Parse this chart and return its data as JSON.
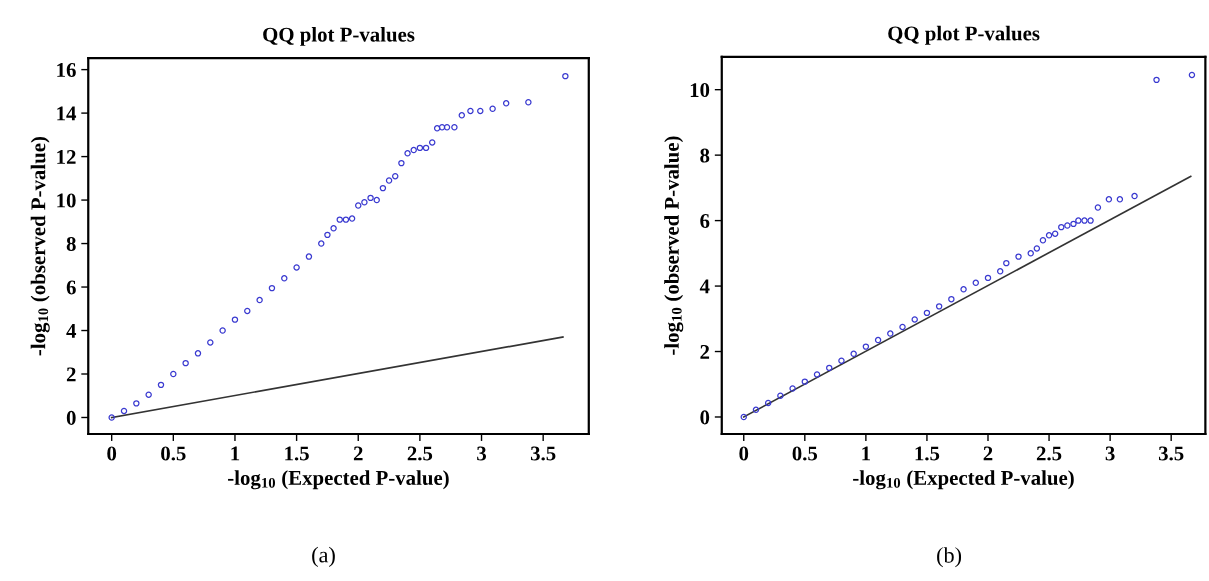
{
  "chart_data": [
    {
      "type": "scatter",
      "title": "QQ plot P-values",
      "xlabel": "-log$_{10}$ (Expected P-value)",
      "ylabel": "-log$_{10}$ (observed P-value)",
      "annotations": [
        "(a)"
      ],
      "marker": "circle",
      "grid": false,
      "xlim": [
        -0.19,
        3.87
      ],
      "ylim": [
        -0.76,
        16.53
      ],
      "xticks": [
        0,
        0.5,
        1,
        1.5,
        2,
        2.5,
        3,
        3.5
      ],
      "yticks": [
        0,
        2,
        4,
        6,
        8,
        10,
        12,
        14,
        16
      ],
      "series": [
        {
          "color": "#3a3ad0",
          "x": [
            0,
            0.1,
            0.2,
            0.3,
            0.4,
            0.5,
            0.6,
            0.7,
            0.8,
            0.9,
            1.0,
            1.1,
            1.2,
            1.3,
            1.4,
            1.5,
            1.6,
            1.7,
            1.75,
            1.8,
            1.85,
            1.9,
            1.95,
            2.0,
            2.05,
            2.1,
            2.15,
            2.2,
            2.25,
            2.3,
            2.35,
            2.4,
            2.45,
            2.5,
            2.55,
            2.6,
            2.64,
            2.68,
            2.72,
            2.78,
            2.84,
            2.91,
            2.99,
            3.09,
            3.2,
            3.38,
            3.68
          ],
          "values": [
            0,
            0.3,
            0.65,
            1.05,
            1.5,
            2.0,
            2.5,
            2.95,
            3.45,
            4.0,
            4.5,
            4.9,
            5.4,
            5.95,
            6.4,
            6.9,
            7.4,
            8.0,
            8.4,
            8.7,
            9.1,
            9.1,
            9.15,
            9.75,
            9.9,
            10.1,
            10.0,
            10.55,
            10.9,
            11.1,
            11.7,
            12.15,
            12.3,
            12.4,
            12.4,
            12.65,
            13.3,
            13.35,
            13.35,
            13.35,
            13.9,
            14.1,
            14.1,
            14.2,
            14.45,
            14.5,
            15.7
          ]
        },
        {
          "type": "line",
          "marker": "none",
          "color": "#333333",
          "x": [
            0,
            3.66
          ],
          "values": [
            0,
            3.7
          ]
        }
      ]
    },
    {
      "type": "scatter",
      "title": "QQ plot P-values",
      "xlabel": "-log$_{10}$ (Expected P-value)",
      "ylabel": "-log$_{10}$ (observed P-value)",
      "annotations": [
        "(b)"
      ],
      "marker": "circle",
      "grid": false,
      "xlim": [
        -0.18,
        3.78
      ],
      "ylim": [
        -0.52,
        11.0
      ],
      "xticks": [
        0,
        0.5,
        1,
        1.5,
        2,
        2.5,
        3,
        3.5
      ],
      "yticks": [
        0,
        2,
        4,
        6,
        8,
        10
      ],
      "series": [
        {
          "color": "#3a3ad0",
          "x": [
            0,
            0.1,
            0.2,
            0.3,
            0.4,
            0.5,
            0.6,
            0.7,
            0.8,
            0.9,
            1.0,
            1.1,
            1.2,
            1.3,
            1.4,
            1.5,
            1.6,
            1.7,
            1.8,
            1.9,
            2.0,
            2.1,
            2.15,
            2.25,
            2.35,
            2.4,
            2.45,
            2.5,
            2.55,
            2.6,
            2.65,
            2.7,
            2.74,
            2.79,
            2.84,
            2.9,
            2.99,
            3.08,
            3.2,
            3.38,
            3.67
          ],
          "values": [
            0,
            0.22,
            0.43,
            0.65,
            0.87,
            1.08,
            1.3,
            1.5,
            1.72,
            1.93,
            2.15,
            2.35,
            2.55,
            2.75,
            2.98,
            3.18,
            3.38,
            3.6,
            3.9,
            4.1,
            4.25,
            4.45,
            4.7,
            4.9,
            5.0,
            5.15,
            5.4,
            5.55,
            5.6,
            5.8,
            5.85,
            5.9,
            6.0,
            6.0,
            6.0,
            6.4,
            6.65,
            6.65,
            6.75,
            10.3,
            10.45
          ]
        },
        {
          "type": "line",
          "marker": "none",
          "color": "#333333",
          "x": [
            0,
            3.66
          ],
          "values": [
            0,
            7.35
          ]
        }
      ]
    }
  ]
}
